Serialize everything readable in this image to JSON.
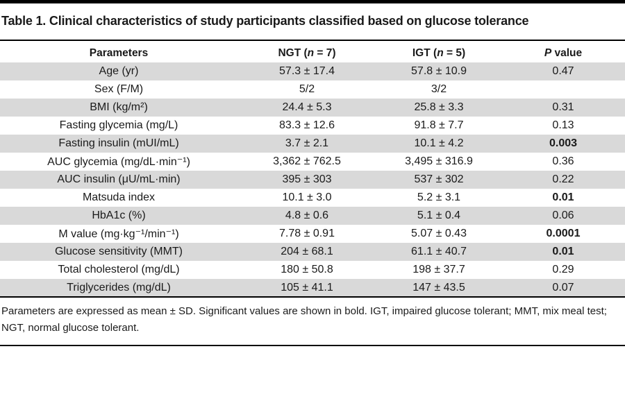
{
  "title": "Table 1. Clinical characteristics of study participants classified based on glucose tolerance",
  "headers": {
    "parameters": "Parameters",
    "ngt_prefix": "NGT (",
    "ngt_n": "n",
    "ngt_suffix": " = 7)",
    "igt_prefix": "IGT (",
    "igt_n": "n",
    "igt_suffix": " = 5)",
    "p_italic": "P",
    "p_suffix": " value"
  },
  "rows": [
    {
      "param": "Age (yr)",
      "ngt": "57.3 ± 17.4",
      "igt": "57.8 ± 10.9",
      "p": "0.47",
      "bold": false
    },
    {
      "param": "Sex (F/M)",
      "ngt": "5/2",
      "igt": "3/2",
      "p": "",
      "bold": false
    },
    {
      "param": "BMI (kg/m²)",
      "ngt": "24.4 ± 5.3",
      "igt": "25.8 ± 3.3",
      "p": "0.31",
      "bold": false
    },
    {
      "param": "Fasting glycemia (mg/L)",
      "ngt": "83.3 ± 12.6",
      "igt": "91.8 ± 7.7",
      "p": "0.13",
      "bold": false
    },
    {
      "param": "Fasting insulin (mUI/mL)",
      "ngt": "3.7 ± 2.1",
      "igt": "10.1 ± 4.2",
      "p": "0.003",
      "bold": true
    },
    {
      "param": "AUC glycemia (mg/dL·min⁻¹)",
      "ngt": "3,362 ± 762.5",
      "igt": "3,495 ± 316.9",
      "p": "0.36",
      "bold": false
    },
    {
      "param": "AUC insulin (μU/mL·min)",
      "ngt": "395 ± 303",
      "igt": "537 ± 302",
      "p": "0.22",
      "bold": false
    },
    {
      "param": "Matsuda index",
      "ngt": "10.1 ± 3.0",
      "igt": "5.2 ± 3.1",
      "p": "0.01",
      "bold": true
    },
    {
      "param": "HbA1c (%)",
      "ngt": "4.8 ± 0.6",
      "igt": "5.1 ± 0.4",
      "p": "0.06",
      "bold": false
    },
    {
      "param": "M value (mg·kg⁻¹/min⁻¹)",
      "ngt": "7.78 ± 0.91",
      "igt": "5.07 ± 0.43",
      "p": "0.0001",
      "bold": true
    },
    {
      "param": "Glucose sensitivity (MMT)",
      "ngt": "204 ± 68.1",
      "igt": "61.1 ± 40.7",
      "p": "0.01",
      "bold": true
    },
    {
      "param": "Total cholesterol (mg/dL)",
      "ngt": "180 ± 50.8",
      "igt": "198 ± 37.7",
      "p": "0.29",
      "bold": false
    },
    {
      "param": "Triglycerides (mg/dL)",
      "ngt": "105 ± 41.1",
      "igt": "147 ± 43.5",
      "p": "0.07",
      "bold": false
    }
  ],
  "footnote": "Parameters are expressed as mean ± SD. Significant values are shown in bold. IGT, impaired glucose tolerant; MMT, mix meal test; NGT, normal glucose tolerant.",
  "colors": {
    "row_shade": "#d9d9d9",
    "rule": "#000000"
  }
}
